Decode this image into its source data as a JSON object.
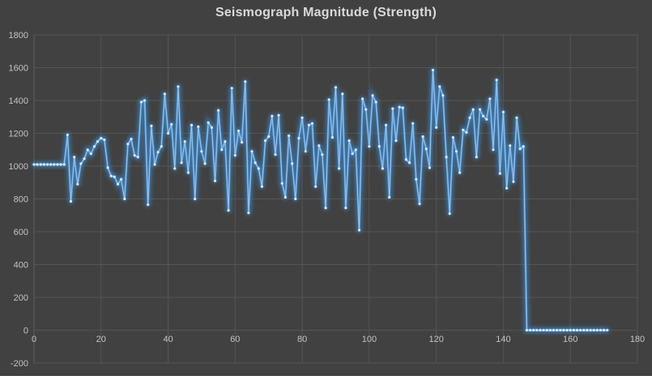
{
  "window": {
    "background_color": "#414141"
  },
  "chart_data": {
    "type": "line",
    "title": "Seismograph Magnitude (Strength)",
    "xlabel": "",
    "ylabel": "",
    "legend": "none",
    "grid": true,
    "xlim": [
      0,
      180
    ],
    "ylim": [
      -200,
      1800
    ],
    "x_ticks": [
      0,
      20,
      40,
      60,
      80,
      100,
      120,
      140,
      160,
      180
    ],
    "y_ticks": [
      -200,
      0,
      200,
      400,
      600,
      800,
      1000,
      1200,
      1400,
      1600,
      1800
    ],
    "x_start": 0,
    "x_step": 1,
    "marker": "circle",
    "line_color": "#5B9BD5",
    "line_glow_color": "#3D85C6",
    "line_highlight_color": "#A9CDEE",
    "marker_color": "#D9E8F6",
    "grid_color": "#555555",
    "axis_line_color": "#5E5E5E",
    "tick_label_color": "#C3C3C3",
    "title_color": "#D9D9D9",
    "values": [
      1010,
      1010,
      1010,
      1010,
      1010,
      1010,
      1010,
      1010,
      1010,
      1010,
      1190,
      785,
      1055,
      890,
      1015,
      1045,
      1100,
      1075,
      1120,
      1150,
      1170,
      1160,
      990,
      940,
      935,
      890,
      920,
      800,
      1135,
      1165,
      1065,
      1055,
      1390,
      1400,
      765,
      1245,
      1010,
      1085,
      1120,
      1440,
      1200,
      1255,
      985,
      1485,
      1020,
      1150,
      960,
      1250,
      800,
      1240,
      1090,
      1015,
      1265,
      1235,
      910,
      1340,
      1100,
      1150,
      730,
      1475,
      1065,
      1215,
      1145,
      1515,
      715,
      1090,
      1020,
      985,
      875,
      1155,
      1180,
      1305,
      1070,
      1310,
      895,
      810,
      1185,
      1015,
      800,
      1170,
      1295,
      1090,
      1250,
      1260,
      875,
      1125,
      1070,
      745,
      1405,
      1175,
      1480,
      985,
      1440,
      745,
      1155,
      1075,
      1100,
      610,
      1410,
      1345,
      1120,
      1430,
      1390,
      1120,
      985,
      1250,
      810,
      1350,
      1155,
      1360,
      1355,
      1040,
      1020,
      1260,
      920,
      770,
      1180,
      1105,
      990,
      1585,
      1235,
      1485,
      1430,
      1055,
      710,
      1175,
      1090,
      960,
      1220,
      1205,
      1295,
      1345,
      1055,
      1345,
      1305,
      1285,
      1410,
      1100,
      1525,
      955,
      1330,
      865,
      1125,
      905,
      1295,
      1105,
      1120,
      0,
      0,
      0,
      0,
      0,
      0,
      0,
      0,
      0,
      0,
      0,
      0,
      0,
      0,
      0,
      0,
      0,
      0,
      0,
      0,
      0,
      0,
      0,
      0,
      0
    ]
  }
}
